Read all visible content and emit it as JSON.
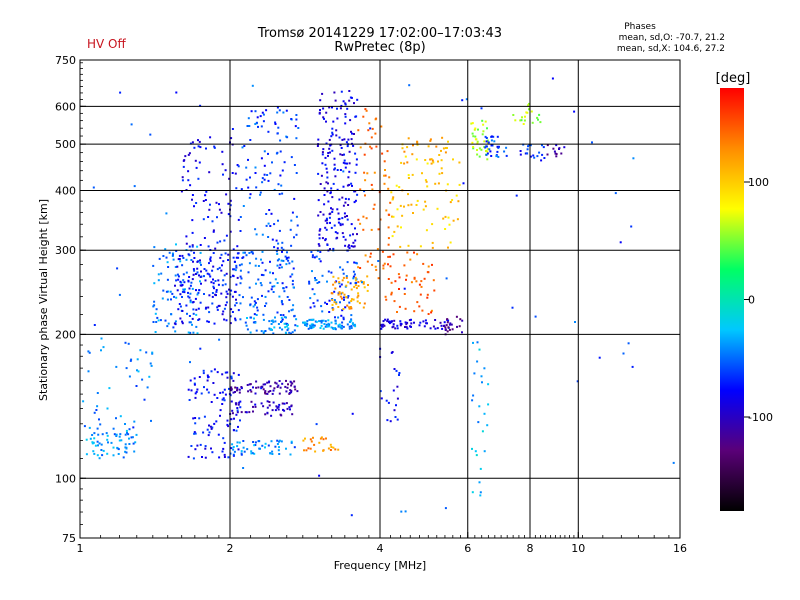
{
  "header": {
    "title": "Tromsø 20141229 17:02:00–17:03:43",
    "subtitle": "RwPretec (8p)",
    "hv_status": "HV Off",
    "stats_title": "Phases",
    "stats_o": "mean, sd,O: -70.7, 21.2",
    "stats_x": "mean, sd,X: 104.6, 27.2"
  },
  "chart_data": {
    "type": "scatter",
    "xlabel": "Frequency [MHz]",
    "ylabel": "Stationary phase Virtual Height [km]",
    "xscale": "log",
    "yscale": "log",
    "xlim": [
      1,
      16
    ],
    "ylim": [
      75,
      750
    ],
    "x_ticks": [
      1,
      2,
      4,
      6,
      8,
      10,
      16
    ],
    "x_tick_labels": [
      "1",
      "2",
      "4",
      "6",
      "8",
      "10",
      "16"
    ],
    "x_grid": [
      2,
      4,
      6,
      8,
      10
    ],
    "y_ticks": [
      75,
      100,
      200,
      300,
      400,
      500,
      600,
      750
    ],
    "y_tick_labels": [
      "75",
      "100",
      "200",
      "300",
      "400",
      "500",
      "600",
      "750"
    ],
    "y_grid": [
      100,
      200,
      300,
      400,
      500,
      600
    ],
    "grid": true,
    "colorbar": {
      "label": "[deg]",
      "range": [
        -180,
        180
      ],
      "ticks": [
        100,
        0,
        -100
      ],
      "tick_labels": [
        "100",
        "0",
        "-100"
      ],
      "colors": [
        "#000000",
        "#5a0078",
        "#0000ff",
        "#00c8ff",
        "#00ff64",
        "#ffff00",
        "#ff8c00",
        "#ff0000"
      ]
    },
    "clusters": [
      {
        "f": [
          1.0,
          1.3
        ],
        "h": [
          110,
          130
        ],
        "phase": -40,
        "n": 70
      },
      {
        "f": [
          1.0,
          1.4
        ],
        "h": [
          130,
          200
        ],
        "phase": -45,
        "n": 40
      },
      {
        "f": [
          1.4,
          1.75
        ],
        "h": [
          200,
          310
        ],
        "phase": -45,
        "n": 90
      },
      {
        "f": [
          1.55,
          2.1
        ],
        "h": [
          210,
          300
        ],
        "phase": -75,
        "n": 170
      },
      {
        "f": [
          1.6,
          2.1
        ],
        "h": [
          300,
          520
        ],
        "phase": -80,
        "n": 90
      },
      {
        "f": [
          1.65,
          2.1
        ],
        "h": [
          110,
          170
        ],
        "phase": -75,
        "n": 110
      },
      {
        "f": [
          2.0,
          2.75
        ],
        "h": [
          150,
          160
        ],
        "phase": -110,
        "n": 70
      },
      {
        "f": [
          2.0,
          2.75
        ],
        "h": [
          135,
          145
        ],
        "phase": -100,
        "n": 50
      },
      {
        "f": [
          2.0,
          2.7
        ],
        "h": [
          112,
          120
        ],
        "phase": -45,
        "n": 50
      },
      {
        "f": [
          2.05,
          2.7
        ],
        "h": [
          210,
          300
        ],
        "phase": -55,
        "n": 120
      },
      {
        "f": [
          2.1,
          2.75
        ],
        "h": [
          300,
          600
        ],
        "phase": -60,
        "n": 110
      },
      {
        "f": [
          2.15,
          2.75
        ],
        "h": [
          200,
          218
        ],
        "phase": -40,
        "n": 50
      },
      {
        "f": [
          2.8,
          3.3
        ],
        "h": [
          113,
          122
        ],
        "phase": 125,
        "n": 25
      },
      {
        "f": [
          2.8,
          3.6
        ],
        "h": [
          205,
          215
        ],
        "phase": -40,
        "n": 80
      },
      {
        "f": [
          2.85,
          3.6
        ],
        "h": [
          215,
          300
        ],
        "phase": -60,
        "n": 80
      },
      {
        "f": [
          3.0,
          3.6
        ],
        "h": [
          300,
          650
        ],
        "phase": -85,
        "n": 200
      },
      {
        "f": [
          3.2,
          3.8
        ],
        "h": [
          225,
          265
        ],
        "phase": 120,
        "n": 60
      },
      {
        "f": [
          3.6,
          4.2
        ],
        "h": [
          260,
          600
        ],
        "phase": 140,
        "n": 70
      },
      {
        "f": [
          4.0,
          4.4
        ],
        "h": [
          130,
          190
        ],
        "phase": -80,
        "n": 20
      },
      {
        "f": [
          4.0,
          5.5
        ],
        "h": [
          205,
          215
        ],
        "phase": -90,
        "n": 60
      },
      {
        "f": [
          4.1,
          5.2
        ],
        "h": [
          220,
          300
        ],
        "phase": 145,
        "n": 50
      },
      {
        "f": [
          4.2,
          5.8
        ],
        "h": [
          300,
          480
        ],
        "phase": 100,
        "n": 70
      },
      {
        "f": [
          4.4,
          5.5
        ],
        "h": [
          450,
          520
        ],
        "phase": 115,
        "n": 30
      },
      {
        "f": [
          5.4,
          5.85
        ],
        "h": [
          200,
          218
        ],
        "phase": -120,
        "n": 20
      },
      {
        "f": [
          6.1,
          6.6
        ],
        "h": [
          460,
          560
        ],
        "phase": 60,
        "n": 35
      },
      {
        "f": [
          6.5,
          7.2
        ],
        "h": [
          470,
          520
        ],
        "phase": -60,
        "n": 30
      },
      {
        "f": [
          6.1,
          6.6
        ],
        "h": [
          85,
          200
        ],
        "phase": -30,
        "n": 25
      },
      {
        "f": [
          7.4,
          8.4
        ],
        "h": [
          550,
          610
        ],
        "phase": 60,
        "n": 20
      },
      {
        "f": [
          7.6,
          8.6
        ],
        "h": [
          460,
          500
        ],
        "phase": -70,
        "n": 20
      },
      {
        "f": [
          8.6,
          9.4
        ],
        "h": [
          470,
          500
        ],
        "phase": -110,
        "n": 12
      },
      {
        "f": [
          1.0,
          16.0
        ],
        "h": [
          80,
          700
        ],
        "phase": -60,
        "n": 60
      }
    ]
  }
}
